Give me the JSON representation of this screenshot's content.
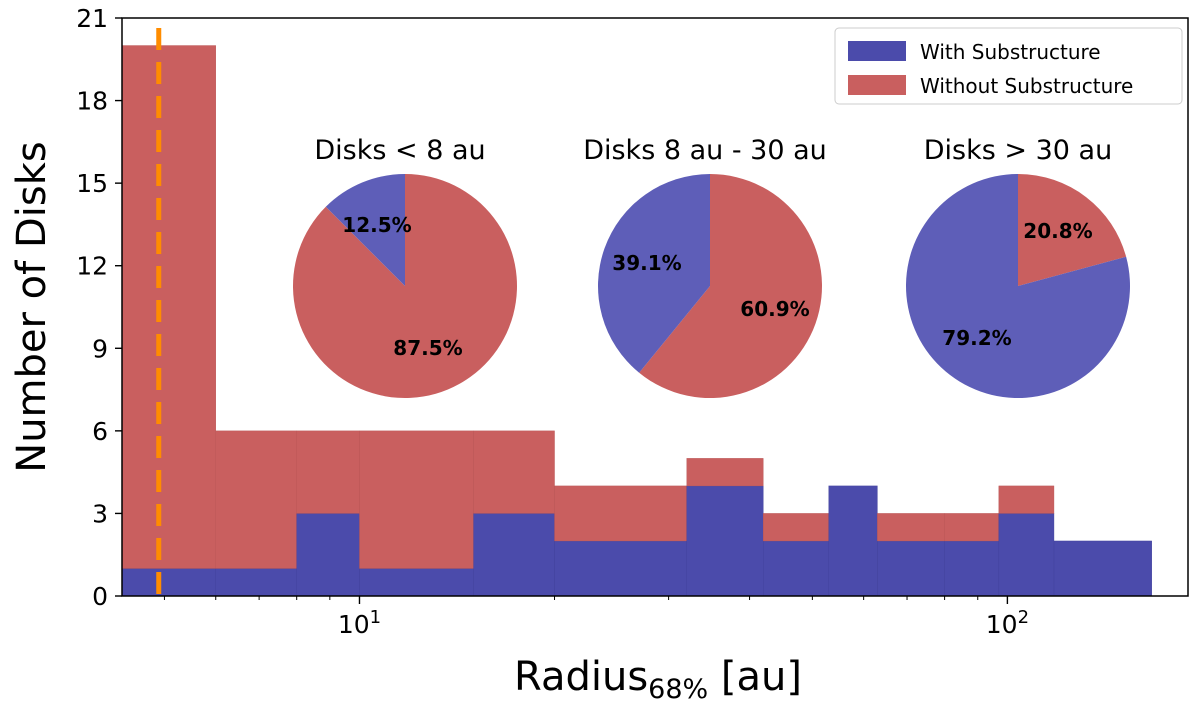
{
  "chart_data": [
    {
      "type": "bar",
      "subtype": "stacked-histogram",
      "xscale": "log",
      "xlim": [
        4.3,
        190
      ],
      "ylim": [
        0,
        21
      ],
      "yticks": [
        "0",
        "3",
        "6",
        "9",
        "12",
        "15",
        "18",
        "21"
      ],
      "xticks": [
        {
          "value": 10,
          "base": "10",
          "exp": "1"
        },
        {
          "value": 100,
          "base": "10",
          "exp": "2"
        }
      ],
      "xlabel": {
        "main": "Radius",
        "sub": "68%",
        "unit": " [au]"
      },
      "ylabel": "Number of Disks",
      "grid": false,
      "legend_position": "top-right",
      "colors": {
        "with": "#4b4bab",
        "without": "#c95f5f",
        "threshold": "#ff8c00"
      },
      "bins": [
        {
          "start": 4.3,
          "end": 6.0,
          "with": 1,
          "without": 19
        },
        {
          "start": 6.0,
          "end": 8.0,
          "with": 1,
          "without": 5
        },
        {
          "start": 8.0,
          "end": 10.0,
          "with": 3,
          "without": 3
        },
        {
          "start": 10.0,
          "end": 15.0,
          "with": 1,
          "without": 5
        },
        {
          "start": 15.0,
          "end": 20.0,
          "with": 3,
          "without": 3
        },
        {
          "start": 20.0,
          "end": 32.0,
          "with": 2,
          "without": 2
        },
        {
          "start": 32.0,
          "end": 42.0,
          "with": 4,
          "without": 1
        },
        {
          "start": 42.0,
          "end": 53.0,
          "with": 2,
          "without": 1
        },
        {
          "start": 53.0,
          "end": 63.0,
          "with": 4,
          "without": 0
        },
        {
          "start": 63.0,
          "end": 80.0,
          "with": 2,
          "without": 1
        },
        {
          "start": 80.0,
          "end": 97.0,
          "with": 2,
          "without": 1
        },
        {
          "start": 97.0,
          "end": 118.0,
          "with": 3,
          "without": 1
        },
        {
          "start": 118.0,
          "end": 167.0,
          "with": 2,
          "without": 0
        }
      ],
      "series": [
        {
          "name": "With Substructure",
          "key": "with"
        },
        {
          "name": "Without Substructure",
          "key": "without"
        }
      ],
      "threshold_line": {
        "x": 4.9,
        "style": "dashed"
      }
    },
    {
      "type": "pie",
      "title": "Disks < 8 au",
      "slices": [
        {
          "label": "With Substructure",
          "value": 12.5,
          "text": "12.5%"
        },
        {
          "label": "Without Substructure",
          "value": 87.5,
          "text": "87.5%"
        }
      ]
    },
    {
      "type": "pie",
      "title": "Disks 8 au - 30 au",
      "slices": [
        {
          "label": "With Substructure",
          "value": 39.1,
          "text": "39.1%"
        },
        {
          "label": "Without Substructure",
          "value": 60.9,
          "text": "60.9%"
        }
      ]
    },
    {
      "type": "pie",
      "title": "Disks > 30 au",
      "slices": [
        {
          "label": "With Substructure",
          "value": 79.2,
          "text": "79.2%"
        },
        {
          "label": "Without Substructure",
          "value": 20.8,
          "text": "20.8%"
        }
      ]
    }
  ]
}
